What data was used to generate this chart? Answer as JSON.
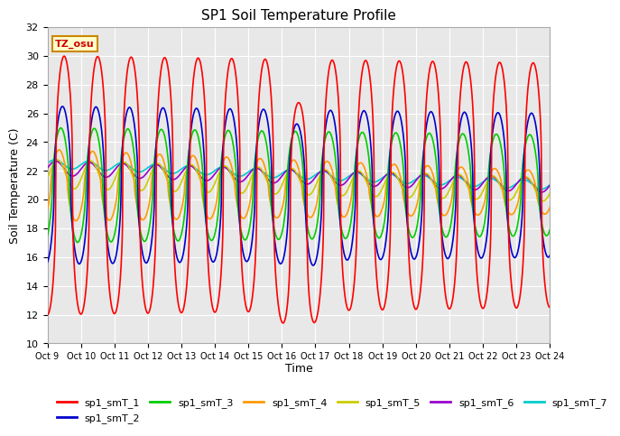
{
  "title": "SP1 Soil Temperature Profile",
  "xlabel": "Time",
  "ylabel": "Soil Temperature (C)",
  "ylim": [
    10,
    32
  ],
  "yticks": [
    10,
    12,
    14,
    16,
    18,
    20,
    22,
    24,
    26,
    28,
    30,
    32
  ],
  "tz_label": "TZ_osu",
  "background_color": "#e8e8e8",
  "legend_entries": [
    "sp1_smT_1",
    "sp1_smT_2",
    "sp1_smT_3",
    "sp1_smT_4",
    "sp1_smT_5",
    "sp1_smT_6",
    "sp1_smT_7"
  ],
  "line_colors": [
    "#ff0000",
    "#0000cc",
    "#00cc00",
    "#ff9900",
    "#cccc00",
    "#9900cc",
    "#00cccc"
  ],
  "x_tick_labels": [
    "Oct 9",
    "Oct 10",
    "Oct 11",
    "Oct 12",
    "Oct 13",
    "Oct 14",
    "Oct 15",
    "Oct 16",
    "Oct 17",
    "Oct 18",
    "Oct 19",
    "Oct 20",
    "Oct 21",
    "Oct 22",
    "Oct 23",
    "Oct 24"
  ]
}
